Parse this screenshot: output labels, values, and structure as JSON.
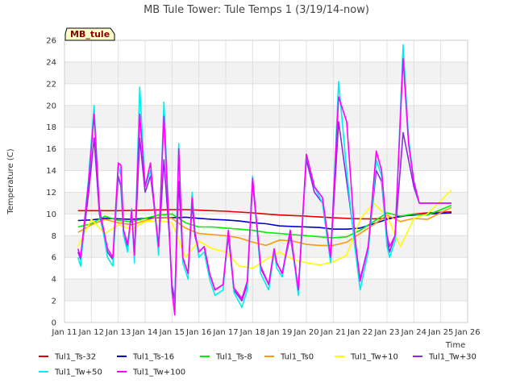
{
  "chart_data": {
    "type": "line",
    "title": "MB Tule Tower: Tule Temps 1 (3/19/14-now)",
    "badge": "MB_tule",
    "xlabel": "Time",
    "ylabel": "Temperature (C)",
    "xlim": [
      11,
      26
    ],
    "ylim": [
      0,
      26
    ],
    "x_ticks": [
      11,
      12,
      13,
      14,
      15,
      16,
      17,
      18,
      19,
      20,
      21,
      22,
      23,
      24,
      25,
      26
    ],
    "x_tick_labels": [
      "Jan 11",
      "Jan 12",
      "Jan 13",
      "Jan 14",
      "Jan 15",
      "Jan 16",
      "Jan 17",
      "Jan 18",
      "Jan 19",
      "Jan 20",
      "Jan 21",
      "Jan 22",
      "Jan 23",
      "Jan 24",
      "Jan 25",
      "Jan 26"
    ],
    "y_ticks": [
      0,
      2,
      4,
      6,
      8,
      10,
      12,
      14,
      16,
      18,
      20,
      22,
      24,
      26
    ],
    "y_tick_labels": [
      "0",
      "2",
      "4",
      "6",
      "8",
      "10",
      "12",
      "14",
      "16",
      "18",
      "20",
      "22",
      "24",
      "26"
    ],
    "series": [
      {
        "name": "Tul1_Ts-32",
        "color": "#dd0000",
        "x": [
          11.5,
          12,
          13,
          14,
          15,
          15.5,
          16,
          17,
          18,
          18.5,
          19,
          20,
          21,
          21.5,
          22,
          22.5,
          23,
          23.5,
          24,
          24.5,
          25.4
        ],
        "y": [
          10.3,
          10.3,
          10.3,
          10.35,
          10.4,
          10.4,
          10.35,
          10.25,
          10.1,
          10.0,
          9.9,
          9.8,
          9.65,
          9.6,
          9.55,
          9.55,
          9.6,
          9.75,
          10.0,
          10.1,
          10.2
        ]
      },
      {
        "name": "Tul1_Ts-16",
        "color": "#0000cc",
        "x": [
          11.5,
          12,
          12.5,
          13,
          13.5,
          14,
          14.5,
          15,
          15.5,
          16,
          16.5,
          17,
          17.5,
          18,
          18.5,
          19,
          19.5,
          20,
          20.5,
          21,
          21.5,
          22,
          22.5,
          23,
          23.5,
          24,
          24.5,
          25.4
        ],
        "y": [
          9.4,
          9.45,
          9.6,
          9.55,
          9.5,
          9.6,
          9.65,
          9.65,
          9.7,
          9.6,
          9.5,
          9.45,
          9.35,
          9.2,
          9.1,
          8.9,
          8.85,
          8.8,
          8.75,
          8.6,
          8.6,
          8.7,
          9.1,
          9.5,
          9.8,
          9.9,
          10.0,
          10.1
        ]
      },
      {
        "name": "Tul1_Ts-8",
        "color": "#00ee00",
        "x": [
          11.5,
          12,
          12.5,
          13,
          13.5,
          14,
          14.5,
          15,
          15.5,
          16,
          16.5,
          17,
          17.5,
          18,
          18.5,
          19,
          19.5,
          20,
          20.5,
          21,
          21.5,
          22,
          22.5,
          23,
          23.5,
          24,
          24.5,
          25.4
        ],
        "y": [
          8.8,
          9.1,
          9.8,
          9.4,
          9.3,
          9.6,
          9.9,
          10.0,
          9.2,
          8.8,
          8.8,
          8.7,
          8.6,
          8.5,
          8.3,
          8.2,
          8.1,
          8.0,
          7.9,
          7.8,
          7.9,
          8.5,
          9.3,
          10.1,
          9.8,
          10.0,
          9.9,
          10.8
        ]
      },
      {
        "name": "Tul1_Ts0",
        "color": "#ff9900",
        "x": [
          11.5,
          12,
          12.5,
          13,
          13.5,
          14,
          14.5,
          15,
          15.5,
          16,
          16.5,
          17,
          17.5,
          18,
          18.5,
          19,
          19.5,
          20,
          20.5,
          21,
          21.5,
          22,
          22.5,
          23,
          23.5,
          24,
          24.5,
          25.4
        ],
        "y": [
          8.3,
          9.0,
          9.5,
          9.2,
          9.0,
          9.4,
          9.7,
          9.6,
          8.7,
          8.2,
          8.1,
          8.0,
          7.8,
          7.4,
          7.1,
          7.6,
          7.5,
          7.2,
          7.1,
          7.1,
          7.4,
          8.2,
          9.0,
          9.9,
          9.3,
          9.6,
          9.5,
          10.6
        ]
      },
      {
        "name": "Tul1_Tw+10",
        "color": "#ffff00",
        "x": [
          11.5,
          12,
          12.5,
          13,
          13.5,
          14,
          14.5,
          15,
          15.5,
          16,
          16.5,
          17,
          17.5,
          18,
          18.5,
          19,
          19.5,
          20,
          20.5,
          21,
          21.5,
          22,
          22.5,
          23,
          23.5,
          24,
          24.5,
          25.4
        ],
        "y": [
          7.0,
          9.5,
          8.2,
          9.0,
          8.6,
          9.3,
          9.4,
          9.2,
          6.0,
          7.5,
          6.8,
          6.5,
          5.2,
          5.0,
          5.8,
          6.5,
          5.8,
          5.5,
          5.3,
          5.6,
          6.2,
          9.5,
          11.0,
          9.8,
          7.0,
          9.6,
          10.0,
          12.2
        ]
      },
      {
        "name": "Tul1_Tw+30",
        "color": "#8a2be2",
        "x": [
          11.5,
          11.6,
          11.9,
          12.1,
          12.3,
          12.6,
          12.8,
          13.0,
          13.1,
          13.2,
          13.35,
          13.5,
          13.6,
          13.8,
          14.0,
          14.2,
          14.3,
          14.5,
          14.7,
          14.9,
          15.0,
          15.1,
          15.25,
          15.4,
          15.6,
          15.75,
          15.85,
          16.0,
          16.2,
          16.4,
          16.6,
          16.9,
          17.1,
          17.3,
          17.6,
          17.8,
          18.0,
          18.3,
          18.6,
          18.8,
          18.9,
          19.1,
          19.4,
          19.7,
          20.0,
          20.3,
          20.6,
          20.9,
          21.2,
          21.5,
          21.8,
          22.0,
          22.3,
          22.6,
          22.8,
          23.0,
          23.1,
          23.3,
          23.6,
          23.8,
          24.0,
          24.2,
          24.5,
          24.7,
          24.9,
          25.1,
          25.3,
          25.4
        ],
        "y": [
          6.5,
          5.8,
          12.0,
          17.0,
          10.0,
          6.5,
          5.8,
          13.5,
          12.5,
          8.0,
          7.0,
          10.0,
          6.0,
          17.0,
          12.0,
          13.5,
          11.5,
          6.8,
          15.0,
          8.0,
          3.5,
          2.0,
          13.0,
          6.0,
          4.5,
          11.0,
          8.0,
          6.5,
          7.0,
          4.5,
          3.0,
          3.5,
          8.0,
          3.0,
          2.0,
          3.5,
          13.0,
          5.0,
          3.5,
          6.5,
          5.5,
          4.5,
          8.0,
          3.0,
          15.0,
          12.0,
          11.0,
          6.0,
          18.5,
          13.0,
          7.5,
          4.0,
          7.0,
          14.0,
          13.0,
          7.5,
          6.5,
          8.0,
          17.5,
          15.0,
          12.5,
          11.0,
          11.0,
          11.0,
          11.0,
          11.0,
          11.0,
          11.0
        ]
      },
      {
        "name": "Tul1_Tw+50",
        "color": "#00eeee",
        "x": [
          11.5,
          11.6,
          11.9,
          12.1,
          12.3,
          12.6,
          12.8,
          13.0,
          13.1,
          13.2,
          13.35,
          13.5,
          13.6,
          13.8,
          14.0,
          14.2,
          14.3,
          14.5,
          14.7,
          14.9,
          15.0,
          15.1,
          15.25,
          15.4,
          15.6,
          15.75,
          15.85,
          16.0,
          16.2,
          16.4,
          16.6,
          16.9,
          17.1,
          17.3,
          17.6,
          17.8,
          18.0,
          18.3,
          18.6,
          18.8,
          18.9,
          19.1,
          19.4,
          19.7,
          20.0,
          20.3,
          20.6,
          20.9,
          21.2,
          21.5,
          21.8,
          22.0,
          22.3,
          22.6,
          22.8,
          23.0,
          23.1,
          23.3,
          23.6,
          23.8,
          24.0,
          24.2,
          24.5,
          24.7,
          24.9,
          25.1,
          25.3,
          25.4
        ],
        "y": [
          6.0,
          5.2,
          13.5,
          20.0,
          10.5,
          6.0,
          5.2,
          14.5,
          13.5,
          8.0,
          6.5,
          10.5,
          5.5,
          21.7,
          12.5,
          14.0,
          12.0,
          6.2,
          20.3,
          8.5,
          2.8,
          1.5,
          16.5,
          5.5,
          4.0,
          12.0,
          8.5,
          6.0,
          6.5,
          4.0,
          2.5,
          3.0,
          8.5,
          2.8,
          1.4,
          3.0,
          13.5,
          4.5,
          3.0,
          6.5,
          5.0,
          4.2,
          8.5,
          2.5,
          15.5,
          12.5,
          11.0,
          5.5,
          22.2,
          14.0,
          7.0,
          3.0,
          6.5,
          15.0,
          13.5,
          7.0,
          6.0,
          7.5,
          25.6,
          17.0,
          13.0,
          11.0,
          11.0,
          11.0,
          11.0,
          11.0,
          11.0,
          11.0
        ]
      },
      {
        "name": "Tul1_Tw+100",
        "color": "#ff00ff",
        "x": [
          11.5,
          11.6,
          11.9,
          12.1,
          12.3,
          12.6,
          12.8,
          13.0,
          13.1,
          13.2,
          13.35,
          13.5,
          13.6,
          13.8,
          14.0,
          14.2,
          14.3,
          14.5,
          14.7,
          14.9,
          15.0,
          15.1,
          15.25,
          15.4,
          15.6,
          15.75,
          15.85,
          16.0,
          16.2,
          16.4,
          16.6,
          16.9,
          17.1,
          17.3,
          17.6,
          17.8,
          18.0,
          18.3,
          18.6,
          18.8,
          18.9,
          19.1,
          19.4,
          19.7,
          20.0,
          20.3,
          20.6,
          20.9,
          21.2,
          21.5,
          21.8,
          22.0,
          22.3,
          22.6,
          22.8,
          23.0,
          23.1,
          23.3,
          23.6,
          23.8,
          24.0,
          24.2,
          24.5,
          24.7,
          24.9,
          25.1,
          25.3,
          25.4
        ],
        "y": [
          6.8,
          6.0,
          13.0,
          19.2,
          10.5,
          6.8,
          6.0,
          14.7,
          14.5,
          8.5,
          7.2,
          10.3,
          6.2,
          19.2,
          12.5,
          14.7,
          11.8,
          7.0,
          19.0,
          8.3,
          3.0,
          0.7,
          16.0,
          6.0,
          4.5,
          11.5,
          8.3,
          6.5,
          7.0,
          4.5,
          3.0,
          3.5,
          8.5,
          3.2,
          2.2,
          3.8,
          13.3,
          5.2,
          3.5,
          6.8,
          5.5,
          4.5,
          8.5,
          3.0,
          15.5,
          12.5,
          11.5,
          6.0,
          20.8,
          18.5,
          8.0,
          3.8,
          7.0,
          15.8,
          14.0,
          8.0,
          7.0,
          8.0,
          24.3,
          16.5,
          13.0,
          11.0,
          11.0,
          11.0,
          11.0,
          11.0,
          11.0,
          11.0
        ]
      }
    ]
  }
}
